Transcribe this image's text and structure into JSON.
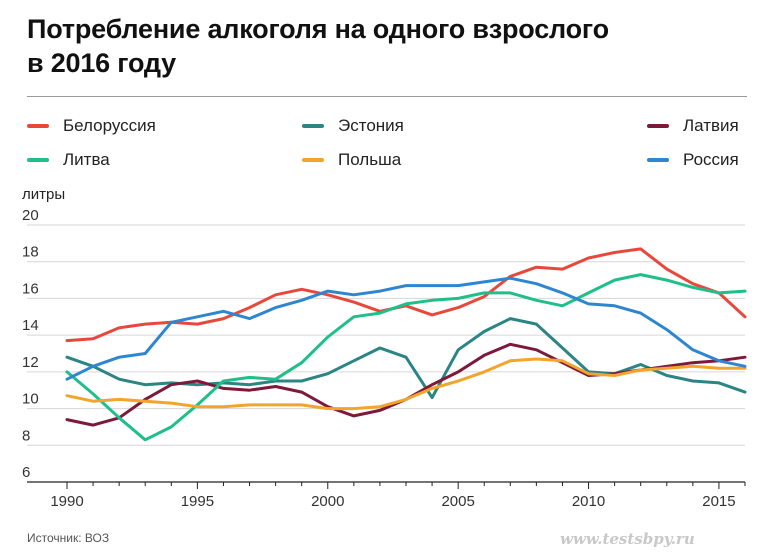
{
  "header": {
    "title_line1": "Потребление алкоголя на одного взрослого",
    "title_line2": "в 2016 году"
  },
  "footer": {
    "source": "Источник: ВОЗ",
    "watermark": "www.testsbpy.ru"
  },
  "chart_data": {
    "type": "line",
    "title": "Потребление алкоголя на одного взрослого в 2016 году",
    "xlabel": "",
    "ylabel": "литры",
    "xlim": [
      1990,
      2016
    ],
    "ylim": [
      6,
      20
    ],
    "x_ticks": [
      "1990",
      "1995",
      "2000",
      "2005",
      "2010",
      "2015"
    ],
    "y_ticks": [
      "6",
      "8",
      "10",
      "12",
      "14",
      "16",
      "18",
      "20"
    ],
    "grid": true,
    "legend_position": "top",
    "x": [
      1990,
      1991,
      1992,
      1993,
      1994,
      1995,
      1996,
      1997,
      1998,
      1999,
      2000,
      2001,
      2002,
      2003,
      2004,
      2005,
      2006,
      2007,
      2008,
      2009,
      2010,
      2011,
      2012,
      2013,
      2014,
      2015,
      2016
    ],
    "series": [
      {
        "name": "Белоруссия",
        "color": "#e8483c",
        "values": [
          13.7,
          13.8,
          14.4,
          14.6,
          14.7,
          14.6,
          14.9,
          15.5,
          16.2,
          16.5,
          16.2,
          15.8,
          15.3,
          15.6,
          15.1,
          15.5,
          16.1,
          17.2,
          17.7,
          17.6,
          18.2,
          18.5,
          18.7,
          17.6,
          16.8,
          16.3,
          15.0
        ]
      },
      {
        "name": "Эстония",
        "color": "#2b8585",
        "values": [
          12.8,
          12.3,
          11.6,
          11.3,
          11.4,
          11.3,
          11.4,
          11.3,
          11.5,
          11.5,
          11.9,
          12.6,
          13.3,
          12.8,
          10.6,
          13.2,
          14.2,
          14.9,
          14.6,
          13.3,
          12.0,
          11.9,
          12.4,
          11.8,
          11.5,
          11.4,
          10.9
        ]
      },
      {
        "name": "Латвия",
        "color": "#7d1a3a",
        "values": [
          9.4,
          9.1,
          9.5,
          10.5,
          11.3,
          11.5,
          11.1,
          11.0,
          11.2,
          10.9,
          10.1,
          9.6,
          9.9,
          10.5,
          11.3,
          12.0,
          12.9,
          13.5,
          13.2,
          12.5,
          11.8,
          11.9,
          12.1,
          12.3,
          12.5,
          12.6,
          12.8
        ]
      },
      {
        "name": "Литва",
        "color": "#1fbf8a",
        "values": [
          12.0,
          10.8,
          9.5,
          8.3,
          9.0,
          10.2,
          11.5,
          11.7,
          11.6,
          12.5,
          13.9,
          15.0,
          15.2,
          15.7,
          15.9,
          16.0,
          16.3,
          16.3,
          15.9,
          15.6,
          16.3,
          17.0,
          17.3,
          17.0,
          16.6,
          16.3,
          16.4
        ]
      },
      {
        "name": "Польша",
        "color": "#f2a52c",
        "values": [
          10.7,
          10.4,
          10.5,
          10.4,
          10.3,
          10.1,
          10.1,
          10.2,
          10.2,
          10.2,
          10.0,
          10.0,
          10.1,
          10.5,
          11.1,
          11.5,
          12.0,
          12.6,
          12.7,
          12.6,
          11.9,
          11.8,
          12.1,
          12.2,
          12.3,
          12.2,
          12.2
        ]
      },
      {
        "name": "Россия",
        "color": "#2e86d1",
        "values": [
          11.6,
          12.3,
          12.8,
          13.0,
          14.7,
          15.0,
          15.3,
          14.9,
          15.5,
          15.9,
          16.4,
          16.2,
          16.4,
          16.7,
          16.7,
          16.7,
          16.9,
          17.1,
          16.8,
          16.3,
          15.7,
          15.6,
          15.2,
          14.3,
          13.2,
          12.6,
          12.3
        ]
      }
    ]
  }
}
